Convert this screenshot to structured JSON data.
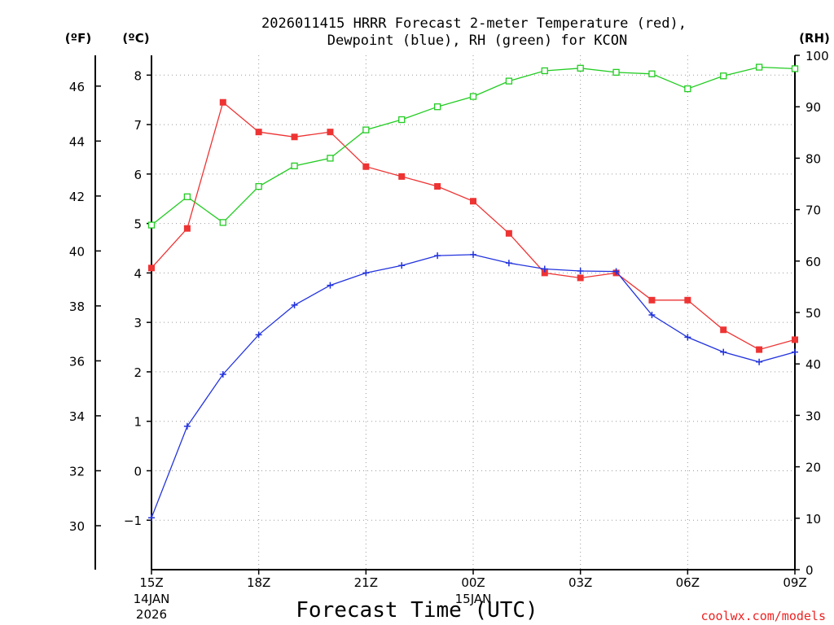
{
  "chart_data": {
    "type": "line",
    "title_line1": "2026011415 HRRR Forecast 2-meter Temperature (red),",
    "title_line2": "Dewpoint (blue), RH (green) for KCON",
    "xlabel": "Forecast Time (UTC)",
    "credit": "coolwx.com/models",
    "units": {
      "fahrenheit": "(ºF)",
      "celsius": "(ºC)",
      "rh": "(RH)"
    },
    "x_hours": [
      0,
      1,
      2,
      3,
      4,
      5,
      6,
      7,
      8,
      9,
      10,
      11,
      12,
      13,
      14,
      15,
      16,
      17,
      18
    ],
    "x_ticks": [
      {
        "hour": 0,
        "label": "15Z",
        "sub1": "14JAN",
        "sub2": "2026"
      },
      {
        "hour": 3,
        "label": "18Z",
        "sub1": "",
        "sub2": ""
      },
      {
        "hour": 6,
        "label": "21Z",
        "sub1": "",
        "sub2": ""
      },
      {
        "hour": 9,
        "label": "00Z",
        "sub1": "15JAN",
        "sub2": ""
      },
      {
        "hour": 12,
        "label": "03Z",
        "sub1": "",
        "sub2": ""
      },
      {
        "hour": 15,
        "label": "06Z",
        "sub1": "",
        "sub2": ""
      },
      {
        "hour": 18,
        "label": "09Z",
        "sub1": "",
        "sub2": ""
      }
    ],
    "xlim": [
      0,
      18
    ],
    "y_celsius": {
      "ylim": [
        -2.0,
        8.4
      ],
      "ticks": [
        -1,
        0,
        1,
        2,
        3,
        4,
        5,
        6,
        7,
        8
      ],
      "tick_labels": [
        "−1",
        "0",
        "1",
        "2",
        "3",
        "4",
        "5",
        "6",
        "7",
        "8"
      ]
    },
    "y_fahrenheit": {
      "ticks": [
        30,
        32,
        34,
        36,
        38,
        40,
        42,
        44,
        46
      ],
      "tick_labels": [
        "30",
        "32",
        "34",
        "36",
        "38",
        "40",
        "42",
        "44",
        "46"
      ]
    },
    "y_rh": {
      "ylim": [
        0,
        100
      ],
      "ticks": [
        0,
        10,
        20,
        30,
        40,
        50,
        60,
        70,
        80,
        90,
        100
      ],
      "tick_labels": [
        "0",
        "10",
        "20",
        "30",
        "40",
        "50",
        "60",
        "70",
        "80",
        "90",
        "100"
      ]
    },
    "series": [
      {
        "name": "2-meter Temperature",
        "axis": "celsius",
        "color": "#ee3333",
        "marker": "filled-square",
        "values": [
          4.1,
          4.9,
          7.45,
          6.85,
          6.75,
          6.85,
          6.15,
          5.95,
          5.75,
          5.45,
          4.8,
          4.0,
          3.9,
          4.0,
          3.45,
          3.45,
          2.85,
          2.45,
          2.65
        ]
      },
      {
        "name": "Dewpoint",
        "axis": "celsius",
        "color": "#2233dd",
        "marker": "plus",
        "values": [
          -0.95,
          0.9,
          1.95,
          2.75,
          3.35,
          3.75,
          4.0,
          4.15,
          4.35,
          4.37,
          4.2,
          4.08,
          4.04,
          4.03,
          3.15,
          2.7,
          2.4,
          2.2,
          2.4
        ]
      },
      {
        "name": "RH",
        "axis": "rh",
        "color": "#22cc22",
        "marker": "open-square",
        "values": [
          67,
          72.5,
          67.5,
          74.5,
          78.5,
          80,
          85.5,
          87.5,
          90,
          92,
          95,
          97,
          97.5,
          96.7,
          96.4,
          93.5,
          96,
          97.7,
          97.4
        ]
      }
    ]
  }
}
